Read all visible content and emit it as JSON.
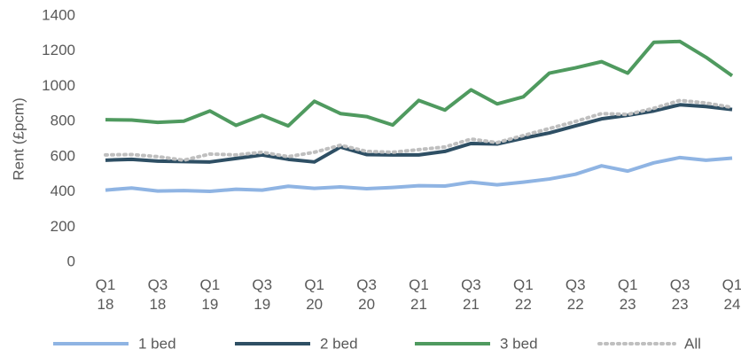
{
  "chart_data": {
    "type": "line",
    "y_label": "Rent (£pcm)",
    "categories": [
      "Q1 18",
      null,
      "Q3 18",
      null,
      "Q1 19",
      null,
      "Q3 19",
      null,
      "Q1 20",
      null,
      "Q3 20",
      null,
      "Q1 21",
      null,
      "Q3 21",
      null,
      "Q1 22",
      null,
      "Q3 22",
      null,
      "Q1 23",
      null,
      "Q3 23",
      null,
      "Q1 24"
    ],
    "series": [
      {
        "name": "1 bed",
        "color": "#8fb4e3",
        "style": "solid",
        "values": [
          410,
          422,
          405,
          407,
          403,
          415,
          410,
          432,
          420,
          428,
          418,
          425,
          435,
          433,
          455,
          440,
          455,
          473,
          500,
          548,
          518,
          565,
          595,
          580,
          592
        ]
      },
      {
        "name": "2 bed",
        "color": "#2e4f64",
        "style": "solid",
        "values": [
          580,
          585,
          575,
          572,
          570,
          590,
          610,
          585,
          570,
          655,
          612,
          610,
          610,
          630,
          675,
          672,
          705,
          735,
          775,
          815,
          835,
          860,
          895,
          885,
          868
        ]
      },
      {
        "name": "3 bed",
        "color": "#4f9a5f",
        "style": "solid",
        "values": [
          810,
          808,
          795,
          802,
          860,
          778,
          835,
          775,
          915,
          845,
          828,
          780,
          920,
          865,
          980,
          900,
          940,
          1075,
          1105,
          1140,
          1075,
          1250,
          1255,
          1165,
          1060
        ]
      },
      {
        "name": "All",
        "color": "#bfbfbf",
        "style": "dotted",
        "values": [
          610,
          612,
          600,
          580,
          615,
          610,
          625,
          600,
          625,
          665,
          630,
          625,
          640,
          655,
          700,
          680,
          720,
          760,
          800,
          845,
          840,
          875,
          920,
          905,
          880
        ]
      }
    ],
    "ylim": [
      0,
      1400
    ],
    "yticks": [
      0,
      200,
      400,
      600,
      800,
      1000,
      1200,
      1400
    ],
    "grid": false,
    "legend": "bottom"
  }
}
